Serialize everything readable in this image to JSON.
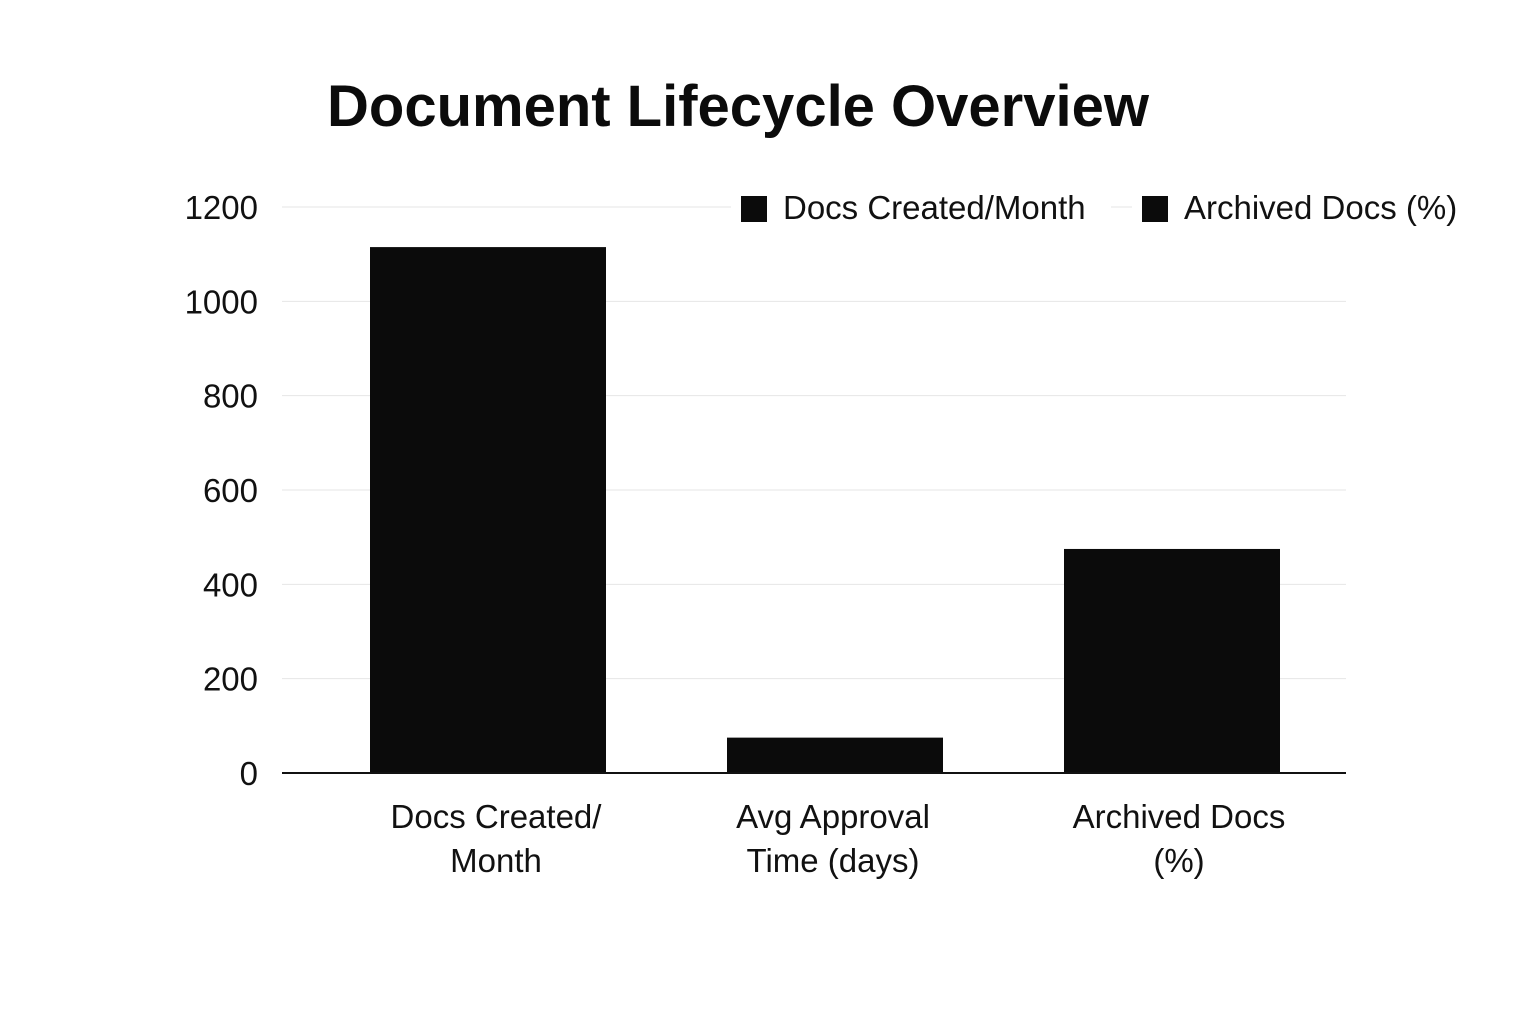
{
  "chart_data": {
    "type": "bar",
    "title": "Document Lifecycle Overview",
    "xlabel": "",
    "ylabel": "",
    "categories": [
      [
        "Docs Created/",
        "Month"
      ],
      [
        "Avg Approval",
        "Time (days)"
      ],
      [
        "Archived Docs",
        "(%)"
      ]
    ],
    "values": [
      1115,
      75,
      475
    ],
    "ylim": [
      0,
      1200
    ],
    "yticks": [
      0,
      200,
      400,
      600,
      800,
      1000,
      1200
    ],
    "grid": true,
    "legend": {
      "placement": "top-right",
      "entries": [
        "Docs Created/Month",
        "Archived Docs (%)"
      ]
    },
    "colors": {
      "bar": "#0b0b0b",
      "grid": "#e6e6e6",
      "axis": "#111111"
    }
  }
}
